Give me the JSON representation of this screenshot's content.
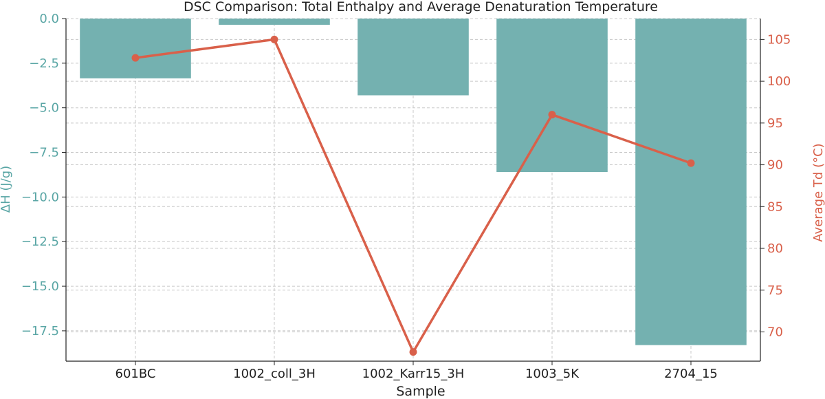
{
  "chart_data": {
    "type": "bar+line",
    "title": "DSC Comparison: Total Enthalpy and Average Denaturation Temperature",
    "xlabel": "Sample",
    "categories": [
      "601BC",
      "1002_coll_3H",
      "1002_Karr15_3H",
      "1003_5K",
      "2704_15"
    ],
    "series": [
      {
        "name": "ΔH (J/g)",
        "kind": "bar",
        "axis": "left",
        "color": "#74b1b0",
        "values": [
          -3.35,
          -0.35,
          -4.3,
          -8.6,
          -18.3
        ]
      },
      {
        "name": "Average Td (°C)",
        "kind": "line",
        "axis": "right",
        "color": "#d9604a",
        "values": [
          102.8,
          105.0,
          67.6,
          96.0,
          90.2
        ]
      }
    ],
    "y_left": {
      "label": "ΔH (J/g)",
      "ylim": [
        -19.2,
        0.0
      ],
      "ticks": [
        0.0,
        -2.5,
        -5.0,
        -7.5,
        -10.0,
        -12.5,
        -15.0,
        -17.5
      ],
      "tick_labels": [
        "0.0",
        "−2.5",
        "−5.0",
        "−7.5",
        "−10.0",
        "−12.5",
        "−15.0",
        "−17.5"
      ],
      "color": "#5aa6a5"
    },
    "y_right": {
      "label": "Average Td (°C)",
      "ylim": [
        66.5,
        107.5
      ],
      "ticks": [
        70,
        75,
        80,
        85,
        90,
        95,
        100,
        105
      ],
      "tick_labels": [
        "70",
        "75",
        "80",
        "85",
        "90",
        "95",
        "100",
        "105"
      ],
      "color": "#d9604a"
    },
    "grid": true
  }
}
